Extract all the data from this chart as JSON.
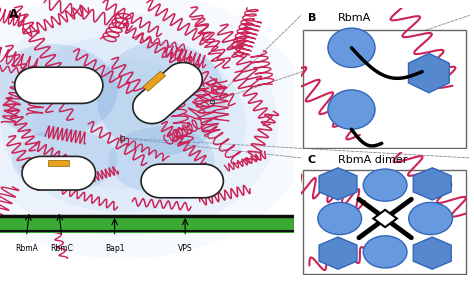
{
  "title_A": "A",
  "title_B": "B",
  "title_C": "C",
  "label_rbmA": "RbmA",
  "label_rbmC": "RbmC",
  "label_bap1": "Bap1",
  "label_vps": "VPS",
  "label_rbmA_box": "RbmA",
  "label_rbmA_dimer": "RbmA dimer",
  "bg_color": "#ffffff",
  "biofilm_blue": "#a8c8f0",
  "biofilm_blue_dark": "#5090d0",
  "bacterium_fill": "#ffffff",
  "bacterium_edge": "#222222",
  "green_layer": "#3aaa35",
  "black_layer": "#111111",
  "vps_color": "#cc2255",
  "rbmC_color": "#e8a020",
  "box_bg": "#f0f0f0",
  "blue_circle": "#6699dd",
  "blue_hex": "#5588cc"
}
